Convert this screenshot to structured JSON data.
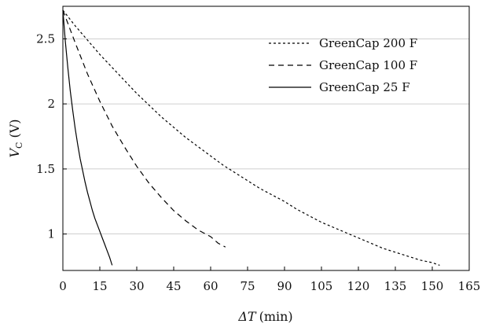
{
  "chart_data": {
    "type": "line",
    "xlabel_var": "ΔT",
    "xlabel_unit": "(min)",
    "ylabel_var": "V",
    "ylabel_sub": "C",
    "ylabel_unit": "(V)",
    "xlim": [
      0,
      165
    ],
    "ylim": [
      0.72,
      2.75
    ],
    "x_ticks": [
      0,
      15,
      30,
      45,
      60,
      75,
      90,
      105,
      120,
      135,
      150,
      165
    ],
    "y_ticks": [
      1,
      1.5,
      2,
      2.5
    ],
    "y_tick_labels": [
      "1",
      "1.5",
      "2",
      "2.5"
    ],
    "grid": "horizontal",
    "legend_position": "top-right",
    "series": [
      {
        "name": "GreenCap 200 F",
        "style": "dotted",
        "x": [
          0,
          5,
          10,
          15,
          20,
          25,
          30,
          35,
          40,
          45,
          50,
          55,
          60,
          65,
          70,
          75,
          80,
          85,
          90,
          95,
          100,
          105,
          110,
          115,
          120,
          125,
          130,
          135,
          140,
          145,
          150,
          153
        ],
        "y": [
          2.72,
          2.6,
          2.49,
          2.38,
          2.28,
          2.18,
          2.08,
          1.99,
          1.9,
          1.82,
          1.74,
          1.67,
          1.6,
          1.53,
          1.47,
          1.41,
          1.35,
          1.3,
          1.25,
          1.19,
          1.14,
          1.09,
          1.05,
          1.01,
          0.97,
          0.93,
          0.89,
          0.86,
          0.83,
          0.8,
          0.78,
          0.76
        ]
      },
      {
        "name": "GreenCap 100 F",
        "style": "dashed",
        "x": [
          0,
          5,
          10,
          15,
          20,
          25,
          30,
          35,
          40,
          45,
          50,
          55,
          60,
          63,
          66
        ],
        "y": [
          2.72,
          2.47,
          2.23,
          2.02,
          1.83,
          1.67,
          1.52,
          1.39,
          1.28,
          1.18,
          1.1,
          1.03,
          0.98,
          0.93,
          0.9
        ]
      },
      {
        "name": "GreenCap 25 F",
        "style": "solid",
        "x": [
          0,
          1,
          2,
          3,
          4,
          5,
          6,
          7,
          8,
          9,
          10,
          11,
          12,
          13,
          14,
          15,
          16,
          17,
          18,
          19,
          20
        ],
        "y": [
          2.72,
          2.48,
          2.28,
          2.1,
          1.95,
          1.81,
          1.69,
          1.58,
          1.49,
          1.4,
          1.32,
          1.25,
          1.18,
          1.12,
          1.07,
          1.02,
          0.97,
          0.92,
          0.87,
          0.82,
          0.76
        ]
      }
    ]
  }
}
